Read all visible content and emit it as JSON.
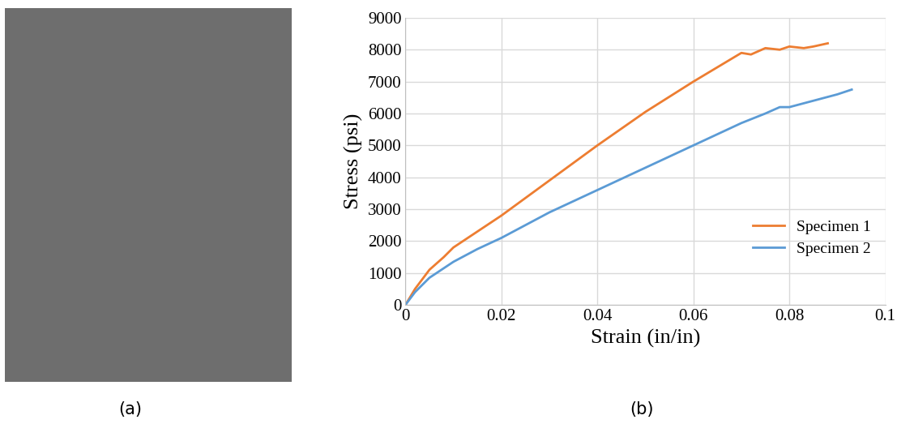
{
  "panel_labels": [
    "(a)",
    "(b)"
  ],
  "chart_data": {
    "type": "line",
    "x_label": "Strain (in/in)",
    "y_label": "Stress (psi)",
    "series": [
      {
        "name": "Specimen 1",
        "color": "#ED7D31",
        "x": [
          0,
          0.002,
          0.005,
          0.008,
          0.01,
          0.015,
          0.02,
          0.03,
          0.04,
          0.05,
          0.06,
          0.065,
          0.07,
          0.072,
          0.075,
          0.078,
          0.08,
          0.083,
          0.085,
          0.088
        ],
        "values": [
          0,
          500,
          1100,
          1500,
          1800,
          2300,
          2800,
          3900,
          5000,
          6050,
          7000,
          7450,
          7900,
          7850,
          8050,
          8000,
          8100,
          8050,
          8100,
          8200
        ]
      },
      {
        "name": "Specimen 2",
        "color": "#5B9BD5",
        "x": [
          0,
          0.002,
          0.005,
          0.008,
          0.01,
          0.015,
          0.02,
          0.03,
          0.04,
          0.05,
          0.06,
          0.07,
          0.075,
          0.078,
          0.08,
          0.085,
          0.09,
          0.093
        ],
        "values": [
          0,
          400,
          850,
          1150,
          1350,
          1750,
          2100,
          2900,
          3600,
          4300,
          5000,
          5700,
          6000,
          6200,
          6200,
          6400,
          6600,
          6750
        ]
      }
    ],
    "xlim": [
      0,
      0.1
    ],
    "xticks": [
      0,
      0.02,
      0.04,
      0.06,
      0.08,
      0.1
    ],
    "ylim": [
      0,
      9000
    ],
    "yticks": [
      0,
      1000,
      2000,
      3000,
      4000,
      5000,
      6000,
      7000,
      8000,
      9000
    ],
    "grid": true,
    "legend": "lower right"
  }
}
